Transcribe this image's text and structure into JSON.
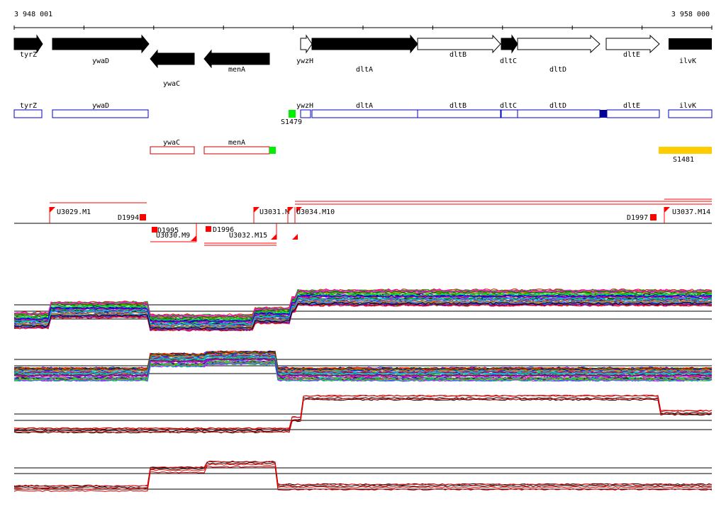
{
  "coords": {
    "start": "3 948 001",
    "end": "3 958 000"
  },
  "genes": [
    {
      "name": "tyrZ",
      "filled": true,
      "dir": "right"
    },
    {
      "name": "ywaD",
      "filled": true,
      "dir": "right"
    },
    {
      "name": "ywaC",
      "filled": true,
      "dir": "left"
    },
    {
      "name": "menA",
      "filled": true,
      "dir": "left"
    },
    {
      "name": "ywzH",
      "filled": false,
      "dir": "right"
    },
    {
      "name": "dltA",
      "filled": true,
      "dir": "right"
    },
    {
      "name": "dltB",
      "filled": false,
      "dir": "right"
    },
    {
      "name": "dltC",
      "filled": true,
      "dir": "right"
    },
    {
      "name": "dltD",
      "filled": false,
      "dir": "right"
    },
    {
      "name": "dltE",
      "filled": false,
      "dir": "right"
    },
    {
      "name": "ilvK",
      "filled": true,
      "dir": "right"
    }
  ],
  "forward_boxes": [
    "tyrZ",
    "ywaD",
    "ywzH",
    "dltA",
    "dltB",
    "dltC",
    "dltD",
    "dltE",
    "ilvK"
  ],
  "reverse_boxes": [
    "ywaC",
    "menA"
  ],
  "features": {
    "s1479": "S1479",
    "s1481": "S1481"
  },
  "transcription_units": [
    "U3029.M1",
    "U3030.M9",
    "U3031.M",
    "U3034.M10",
    "U3032.M15",
    "U3037.M14"
  ],
  "terminators": [
    "D1994",
    "D1995",
    "D1996",
    "D1997"
  ],
  "colors": {
    "gene_box_blue": "#0000cc",
    "rev_box_red": "#cc0000",
    "feature_green": "#00ee00",
    "feature_yellow": "#ffcc00",
    "tu_red": "#ff0000",
    "dark_blue": "#000099"
  }
}
